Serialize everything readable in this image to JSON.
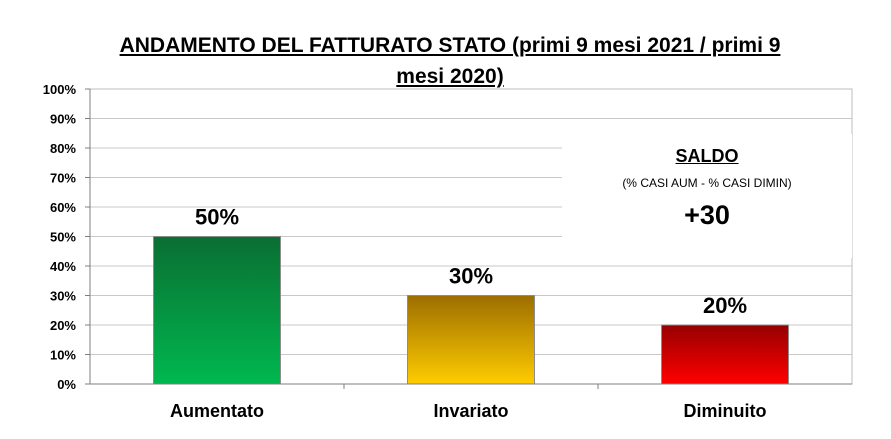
{
  "chart_data": {
    "type": "bar",
    "title": "ANDAMENTO DEL FATTURATO STATO (primi 9 mesi 2021 / primi 9 mesi 2020)",
    "categories": [
      "Aumentato",
      "Invariato",
      "Diminuito"
    ],
    "values": [
      50,
      30,
      20
    ],
    "data_labels": [
      "50%",
      "30%",
      "20%"
    ],
    "yticks": [
      "0%",
      "10%",
      "20%",
      "30%",
      "40%",
      "50%",
      "60%",
      "70%",
      "80%",
      "90%",
      "100%"
    ],
    "ylim": [
      0,
      100
    ],
    "grid": true,
    "legend": "none",
    "colors": [
      {
        "top": "#0a6e32",
        "bottom": "#00b84f"
      },
      {
        "top": "#9c6e00",
        "bottom": "#ffcc00"
      },
      {
        "top": "#960000",
        "bottom": "#ff0000"
      }
    ]
  },
  "saldo": {
    "title": "SALDO",
    "subtitle": "(% CASI AUM - % CASI DIMIN)",
    "value": "+30"
  }
}
